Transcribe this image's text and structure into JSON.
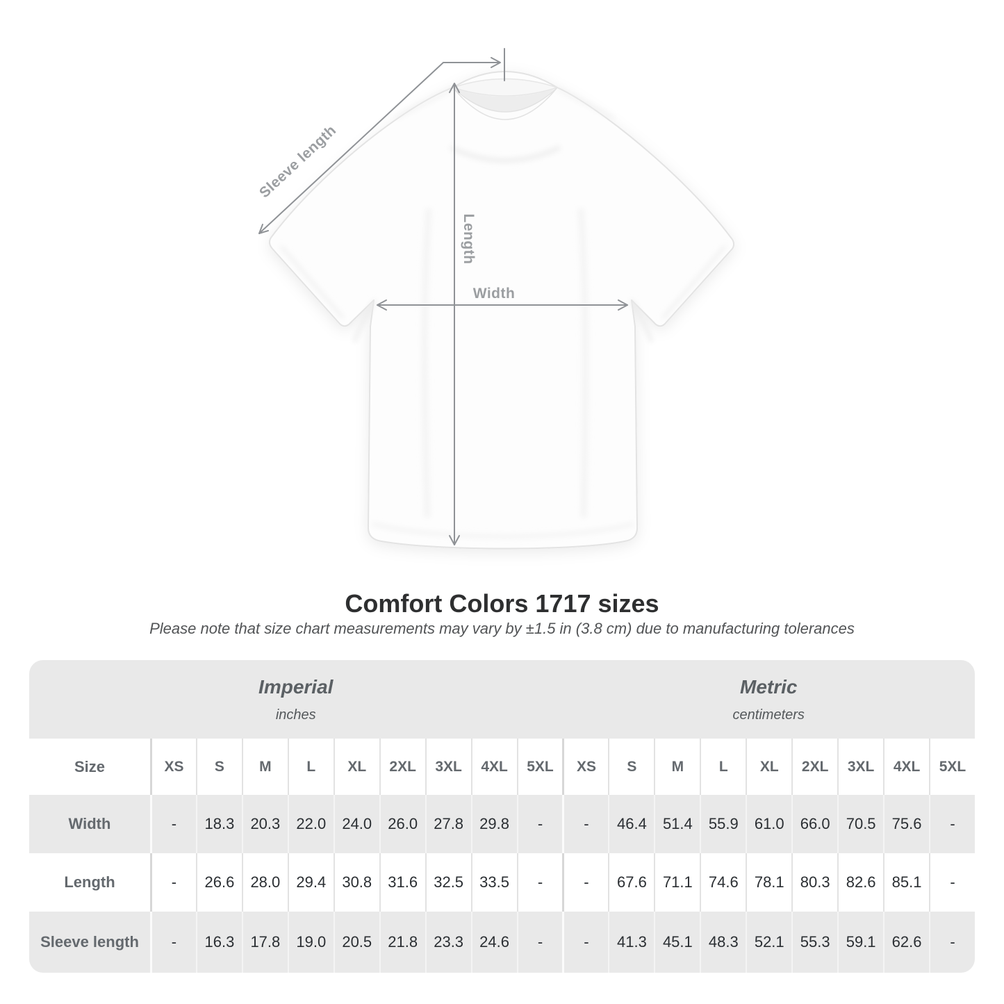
{
  "diagram": {
    "labels": {
      "sleeve_length": "Sleeve length",
      "length": "Length",
      "width": "Width"
    },
    "colors": {
      "annotation_line": "#8f9296",
      "annotation_text": "#9b9ea1",
      "shirt_outline": "#e3e3e3",
      "shirt_fill": "#fdfdfd"
    }
  },
  "chart_data": {
    "type": "table",
    "title": "Comfort Colors 1717 sizes",
    "subtitle": "Please note that size chart measurements may vary by ±1.5 in (3.8 cm) due to manufacturing tolerances",
    "unit_groups": [
      {
        "label": "Imperial",
        "unit": "inches"
      },
      {
        "label": "Metric",
        "unit": "centimeters"
      }
    ],
    "size_header": "Size",
    "sizes": [
      "XS",
      "S",
      "M",
      "L",
      "XL",
      "2XL",
      "3XL",
      "4XL",
      "5XL"
    ],
    "rows": [
      {
        "label": "Width",
        "imperial": [
          "-",
          "18.3",
          "20.3",
          "22.0",
          "24.0",
          "26.0",
          "27.8",
          "29.8",
          "-"
        ],
        "metric": [
          "-",
          "46.4",
          "51.4",
          "55.9",
          "61.0",
          "66.0",
          "70.5",
          "75.6",
          "-"
        ]
      },
      {
        "label": "Length",
        "imperial": [
          "-",
          "26.6",
          "28.0",
          "29.4",
          "30.8",
          "31.6",
          "32.5",
          "33.5",
          "-"
        ],
        "metric": [
          "-",
          "67.6",
          "71.1",
          "74.6",
          "78.1",
          "80.3",
          "82.6",
          "85.1",
          "-"
        ]
      },
      {
        "label": "Sleeve length",
        "imperial": [
          "-",
          "16.3",
          "17.8",
          "19.0",
          "20.5",
          "21.8",
          "23.3",
          "24.6",
          "-"
        ],
        "metric": [
          "-",
          "41.3",
          "45.1",
          "48.3",
          "52.1",
          "55.3",
          "59.1",
          "62.6",
          "-"
        ]
      }
    ],
    "table_colors": {
      "band_gray": "#e9e9e9",
      "row_gray": "#e9e9e9",
      "header_text": "#64696e",
      "value_text": "#2b2f33"
    }
  }
}
